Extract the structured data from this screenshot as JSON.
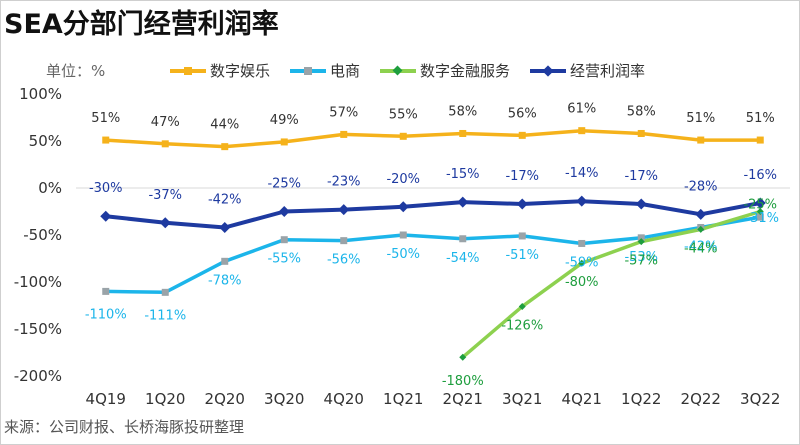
{
  "title": "SEA分部门经营利润率",
  "unit_label": "单位：%",
  "source": "来源：公司财报、长桥海豚投研整理",
  "chart_data": {
    "type": "line",
    "categories": [
      "4Q19",
      "1Q20",
      "2Q20",
      "3Q20",
      "4Q20",
      "1Q21",
      "2Q21",
      "3Q21",
      "4Q21",
      "1Q22",
      "2Q22",
      "3Q22"
    ],
    "ylim": [
      -200,
      100
    ],
    "yticks": [
      100,
      50,
      0,
      -50,
      -100,
      -150,
      -200
    ],
    "ytick_labels": [
      "100%",
      "50%",
      "0%",
      "-50%",
      "-100%",
      "-150%",
      "-200%"
    ],
    "grid": false,
    "legend_position": "top",
    "series": [
      {
        "name": "数字娱乐",
        "color": "#F5B21B",
        "marker": "square",
        "values": [
          51,
          47,
          44,
          49,
          57,
          55,
          58,
          56,
          61,
          58,
          51,
          51
        ],
        "labels": [
          "51%",
          "47%",
          "44%",
          "49%",
          "57%",
          "55%",
          "58%",
          "56%",
          "61%",
          "58%",
          "51%",
          "51%"
        ],
        "label_color": "#333333"
      },
      {
        "name": "电商",
        "color": "#1CB5EA",
        "marker": "square",
        "values": [
          -110,
          -111,
          -78,
          -55,
          -56,
          -50,
          -54,
          -51,
          -59,
          -53,
          -42,
          -31
        ],
        "labels": [
          "-110%",
          "-111%",
          "-78%",
          "-55%",
          "-56%",
          "-50%",
          "-54%",
          "-51%",
          "-59%",
          "-53%",
          "-42%",
          "-31%"
        ],
        "label_color": "#1CB5EA"
      },
      {
        "name": "数字金融服务",
        "color": "#8DD14F",
        "marker": "diamond",
        "values": [
          null,
          null,
          null,
          null,
          null,
          null,
          -180,
          -126,
          -80,
          -57,
          -44,
          -25
        ],
        "labels": [
          "",
          "",
          "",
          "",
          "",
          "",
          "-180%",
          "-126%",
          "-80%",
          "-57%",
          "-44%",
          "-25%"
        ],
        "label_color": "#1E9E3E"
      },
      {
        "name": "经营利润率",
        "color": "#1E3AA0",
        "marker": "diamond",
        "values": [
          -30,
          -37,
          -42,
          -25,
          -23,
          -20,
          -15,
          -17,
          -14,
          -17,
          -28,
          -16
        ],
        "labels": [
          "-30%",
          "-37%",
          "-42%",
          "-25%",
          "-23%",
          "-20%",
          "-15%",
          "-17%",
          "-14%",
          "-17%",
          "-28%",
          "-16%"
        ],
        "label_color": "#1E3AA0"
      }
    ]
  }
}
